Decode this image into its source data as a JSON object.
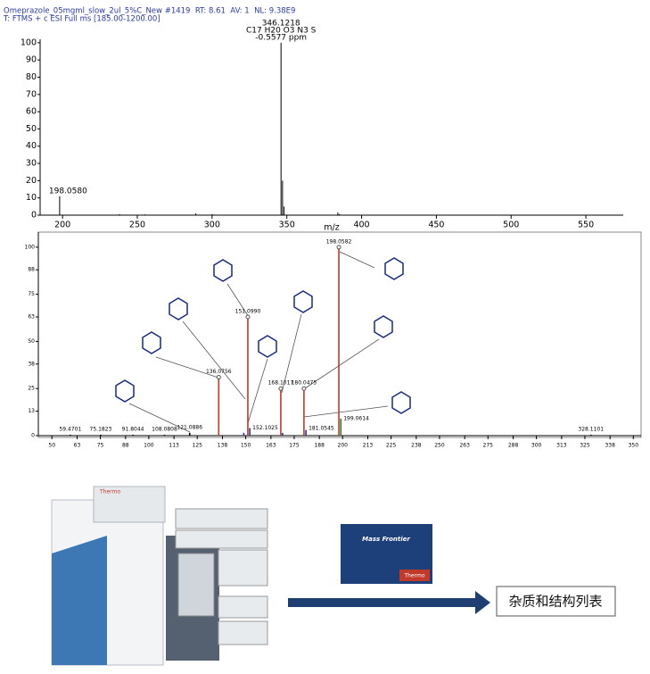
{
  "chart_data": [
    {
      "type": "bar",
      "title": "Omeprazole_05mgml_slow_2ul_5%C_New #1419  RT: 8.61  AV: 1  NL: 9.38E9",
      "subtitle": "T: FTMS + c ESI Full ms [185.00-1200.00]",
      "annotations": [
        "C17 H20 O3 N3 S",
        "-0.5577 ppm"
      ],
      "x_label": "m/z",
      "x": [
        198.058,
        238.1,
        255.0,
        289.1,
        300.2,
        346.1218,
        347.1245,
        348.12,
        384.1,
        385.1
      ],
      "values": [
        11,
        0.6,
        0.4,
        1,
        0.5,
        100,
        20,
        5,
        1.5,
        0.6
      ],
      "x_labels": [
        "198.0580",
        null,
        null,
        null,
        null,
        "346.1218",
        null,
        null,
        null,
        null
      ],
      "color": "#000000",
      "xlim": [
        185,
        575
      ],
      "ylim": [
        0,
        102
      ],
      "xticks": [
        200,
        250,
        300,
        350,
        400,
        450,
        500,
        550
      ],
      "yticks": [
        0,
        10,
        20,
        30,
        40,
        50,
        60,
        70,
        80,
        90,
        100
      ]
    },
    {
      "type": "bar",
      "x": [
        59.4701,
        75.1823,
        91.8044,
        108.0808,
        121.0886,
        136.0756,
        149.0,
        151.099,
        152.1025,
        168.1017,
        169.0,
        180.0475,
        181.0545,
        198.0582,
        199.0614,
        328.1101
      ],
      "values": [
        0.5,
        0.5,
        0.5,
        0.5,
        1.5,
        31,
        1.5,
        63,
        4,
        25,
        1.5,
        25,
        3,
        100,
        9,
        0.5
      ],
      "x_labels": [
        "59.4701",
        "75.1823",
        "91.8044",
        "108.0808",
        "121.0886",
        "136.0756",
        null,
        "151.0990",
        "152.1025",
        "168.1017",
        null,
        "180.0475",
        "181.0545",
        "198.0582",
        "199.0614",
        "328.1101"
      ],
      "colors": [
        "#000000",
        "#000000",
        "#000000",
        "#000000",
        "#000000",
        "#c0392b",
        "#1a3a8a",
        "#c0392b",
        "#1a3a8a",
        "#c0392b",
        "#1a3a8a",
        "#c0392b",
        "#1a3a8a",
        "#c0392b",
        "#1a8a2a",
        "#000000"
      ],
      "xlim": [
        43,
        354
      ],
      "ylim": [
        0,
        108
      ],
      "xticks": [
        50,
        63,
        75,
        88,
        100,
        113,
        125,
        138,
        150,
        163,
        175,
        188,
        200,
        213,
        225,
        238,
        250,
        263,
        275,
        288,
        300,
        313,
        325,
        338,
        350
      ],
      "yticks": [
        0,
        13,
        25,
        38,
        50,
        63,
        75,
        88,
        100
      ]
    }
  ],
  "workflow": {
    "instrument_brand": "Thermo",
    "software_title": "Mass Frontier",
    "software_brand": "Thermo",
    "result": "杂质和结构列表"
  }
}
